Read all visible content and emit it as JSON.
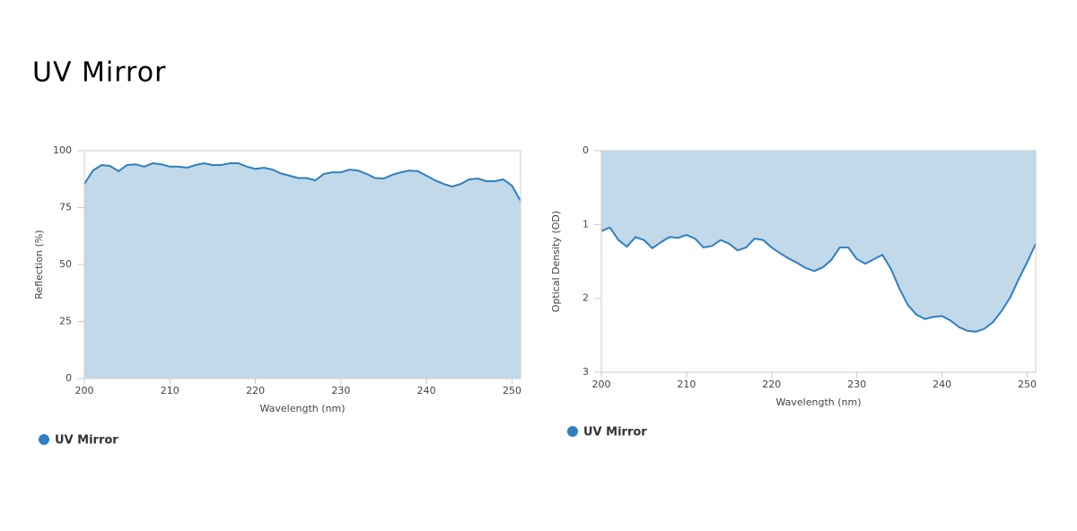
{
  "title": "UV Mirror",
  "chart_data": [
    {
      "type": "area",
      "xlabel": "Wavelength (nm)",
      "ylabel": "Reflection (%)",
      "x": [
        200,
        201,
        202,
        203,
        204,
        205,
        206,
        207,
        208,
        209,
        210,
        211,
        212,
        213,
        214,
        215,
        216,
        217,
        218,
        219,
        220,
        221,
        222,
        223,
        224,
        225,
        226,
        227,
        228,
        229,
        230,
        231,
        232,
        233,
        234,
        235,
        236,
        237,
        238,
        239,
        240,
        241,
        242,
        243,
        244,
        245,
        246,
        247,
        248,
        249,
        250,
        251
      ],
      "series": [
        {
          "name": "UV Mirror",
          "color": "#2f7fc1",
          "fill": "#c2d9e9",
          "values": [
            85.4,
            91.3,
            93.7,
            93.3,
            91,
            93.7,
            94,
            93,
            94.5,
            94,
            93,
            93,
            92.5,
            93.7,
            94.5,
            93.7,
            93.7,
            94.5,
            94.5,
            93,
            92,
            92.5,
            91.7,
            90,
            89,
            88,
            88,
            87,
            89.8,
            90.5,
            90.5,
            91.7,
            91.3,
            89.8,
            88,
            87.8,
            89.4,
            90.5,
            91.3,
            91,
            89,
            87,
            85.4,
            84.3,
            85.4,
            87.4,
            87.8,
            86.6,
            86.6,
            87.4,
            84.6,
            78
          ]
        }
      ],
      "xlim": [
        200,
        251
      ],
      "xticks": [
        200,
        210,
        220,
        230,
        240,
        250
      ],
      "ylim": [
        0,
        100
      ],
      "yticks": [
        0,
        25,
        50,
        75,
        100
      ],
      "grid": false,
      "reverse_y": false
    },
    {
      "type": "area",
      "xlabel": "Wavelength (nm)",
      "ylabel": "Optical Density (OD)",
      "x": [
        200,
        201,
        202,
        203,
        204,
        205,
        206,
        207,
        208,
        209,
        210,
        211,
        212,
        213,
        214,
        215,
        216,
        217,
        218,
        219,
        220,
        221,
        222,
        223,
        224,
        225,
        226,
        227,
        228,
        229,
        230,
        231,
        232,
        233,
        234,
        235,
        236,
        237,
        238,
        239,
        240,
        241,
        242,
        243,
        244,
        245,
        246,
        247,
        248,
        249,
        250,
        251
      ],
      "series": [
        {
          "name": "UV Mirror",
          "color": "#2f7fc1",
          "fill": "#c2d9e9",
          "values": [
            1.09,
            1.04,
            1.21,
            1.3,
            1.17,
            1.21,
            1.32,
            1.24,
            1.17,
            1.18,
            1.14,
            1.19,
            1.31,
            1.29,
            1.21,
            1.26,
            1.35,
            1.31,
            1.19,
            1.21,
            1.31,
            1.39,
            1.46,
            1.52,
            1.59,
            1.63,
            1.58,
            1.48,
            1.31,
            1.31,
            1.47,
            1.53,
            1.47,
            1.41,
            1.6,
            1.87,
            2.09,
            2.22,
            2.28,
            2.25,
            2.24,
            2.3,
            2.39,
            2.44,
            2.45,
            2.41,
            2.32,
            2.17,
            1.99,
            1.74,
            1.51,
            1.26
          ]
        }
      ],
      "xlim": [
        200,
        251
      ],
      "xticks": [
        200,
        210,
        220,
        230,
        240,
        250
      ],
      "ylim": [
        0,
        3
      ],
      "yticks": [
        0,
        1,
        2,
        3
      ],
      "grid": false,
      "reverse_y": true
    }
  ]
}
